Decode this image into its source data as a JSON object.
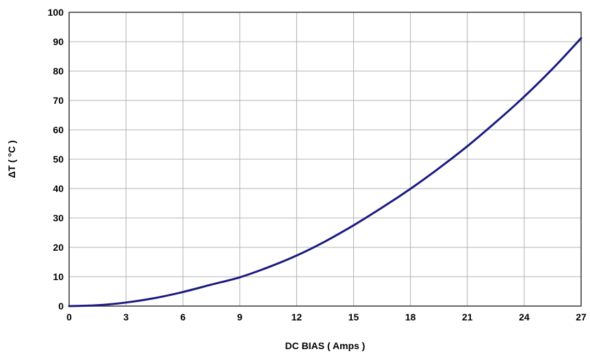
{
  "chart_data": {
    "type": "line",
    "title": "",
    "xlabel": "DC BIAS ( Amps )",
    "ylabel": "ΔT ( °C )",
    "xlim": [
      0,
      27
    ],
    "ylim": [
      0,
      100
    ],
    "xticks": [
      0,
      3,
      6,
      9,
      12,
      15,
      18,
      21,
      24,
      27
    ],
    "yticks": [
      0,
      10,
      20,
      30,
      40,
      50,
      60,
      70,
      80,
      90,
      100
    ],
    "grid": true,
    "series": [
      {
        "name": "",
        "color": "#1a1a80",
        "x": [
          0,
          1.5,
          3,
          4.5,
          6,
          7.5,
          9,
          10.5,
          12,
          13.5,
          15,
          16.5,
          18,
          19.5,
          21,
          22.5,
          24,
          25.5,
          27
        ],
        "y": [
          0,
          0.3,
          1.2,
          2.7,
          4.8,
          7.3,
          9.8,
          13.2,
          17.2,
          22.0,
          27.5,
          33.5,
          39.9,
          46.9,
          54.4,
          62.6,
          71.3,
          80.8,
          91.2
        ]
      }
    ]
  }
}
